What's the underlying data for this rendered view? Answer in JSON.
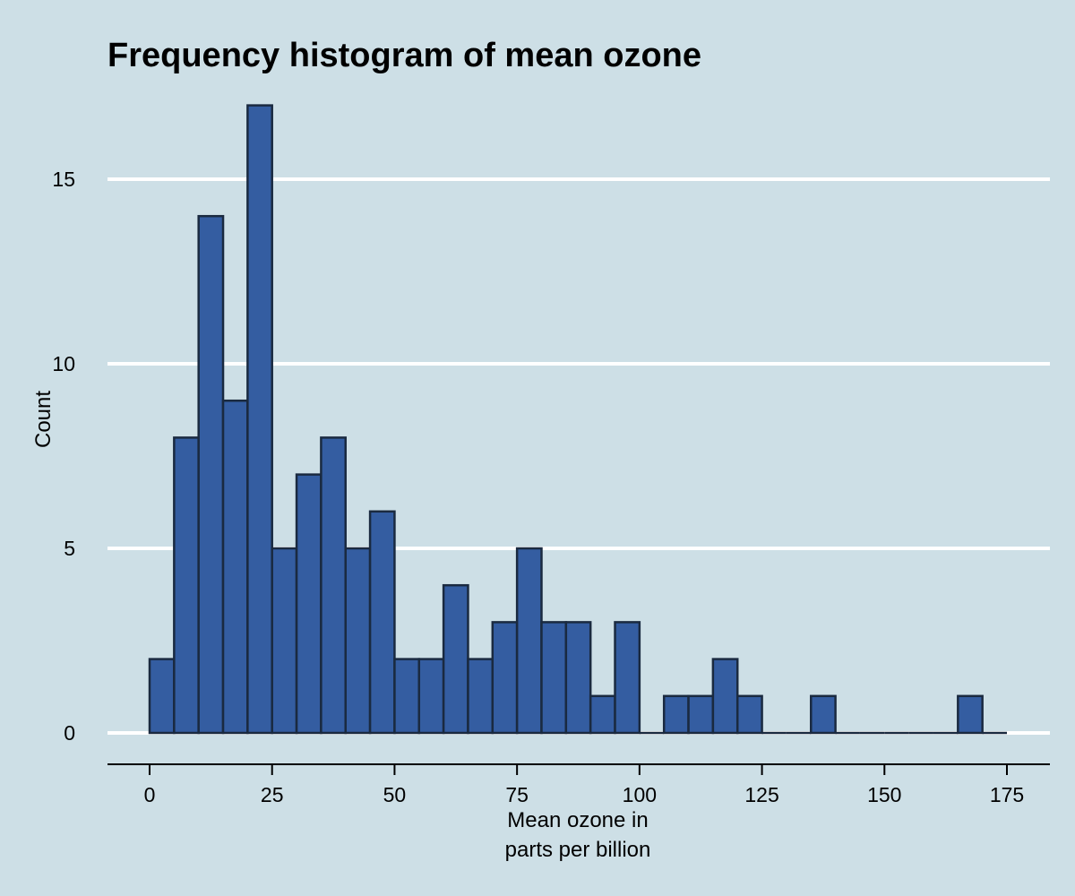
{
  "chart_data": {
    "type": "bar",
    "title": "Frequency histogram of mean ozone",
    "xlabel_lines": [
      "Mean ozone in",
      "parts per billion"
    ],
    "ylabel": "Count",
    "bin_width": 5,
    "bins": [
      {
        "start": 0,
        "end": 5,
        "count": 2
      },
      {
        "start": 5,
        "end": 10,
        "count": 8
      },
      {
        "start": 10,
        "end": 15,
        "count": 14
      },
      {
        "start": 15,
        "end": 20,
        "count": 9
      },
      {
        "start": 20,
        "end": 25,
        "count": 17
      },
      {
        "start": 25,
        "end": 30,
        "count": 5
      },
      {
        "start": 30,
        "end": 35,
        "count": 7
      },
      {
        "start": 35,
        "end": 40,
        "count": 8
      },
      {
        "start": 40,
        "end": 45,
        "count": 5
      },
      {
        "start": 45,
        "end": 50,
        "count": 6
      },
      {
        "start": 50,
        "end": 55,
        "count": 2
      },
      {
        "start": 55,
        "end": 60,
        "count": 2
      },
      {
        "start": 60,
        "end": 65,
        "count": 4
      },
      {
        "start": 65,
        "end": 70,
        "count": 2
      },
      {
        "start": 70,
        "end": 75,
        "count": 3
      },
      {
        "start": 75,
        "end": 80,
        "count": 5
      },
      {
        "start": 80,
        "end": 85,
        "count": 3
      },
      {
        "start": 85,
        "end": 90,
        "count": 3
      },
      {
        "start": 90,
        "end": 95,
        "count": 1
      },
      {
        "start": 95,
        "end": 100,
        "count": 3
      },
      {
        "start": 100,
        "end": 105,
        "count": 0
      },
      {
        "start": 105,
        "end": 110,
        "count": 1
      },
      {
        "start": 110,
        "end": 115,
        "count": 1
      },
      {
        "start": 115,
        "end": 120,
        "count": 2
      },
      {
        "start": 120,
        "end": 125,
        "count": 1
      },
      {
        "start": 125,
        "end": 130,
        "count": 0
      },
      {
        "start": 130,
        "end": 135,
        "count": 0
      },
      {
        "start": 135,
        "end": 140,
        "count": 1
      },
      {
        "start": 140,
        "end": 145,
        "count": 0
      },
      {
        "start": 145,
        "end": 150,
        "count": 0
      },
      {
        "start": 150,
        "end": 155,
        "count": 0
      },
      {
        "start": 155,
        "end": 160,
        "count": 0
      },
      {
        "start": 160,
        "end": 165,
        "count": 0
      },
      {
        "start": 165,
        "end": 170,
        "count": 1
      },
      {
        "start": 170,
        "end": 175,
        "count": 0
      }
    ],
    "xlim": [
      0,
      175
    ],
    "ylim": [
      0,
      17
    ],
    "xticks": [
      0,
      25,
      50,
      75,
      100,
      125,
      150,
      175
    ],
    "yticks": [
      0,
      5,
      10,
      15
    ],
    "grid": "horizontal",
    "colors": {
      "background": "#cddfe6",
      "bar_fill": "#345da1",
      "bar_stroke": "#1a2a40",
      "gridline": "#ffffff",
      "axis": "#000000"
    }
  }
}
